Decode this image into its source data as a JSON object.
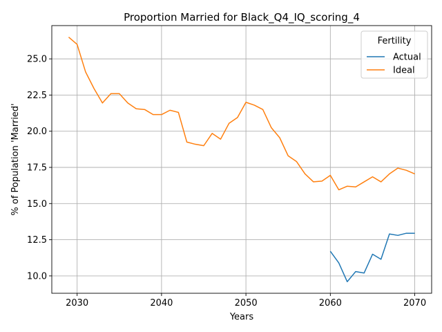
{
  "chart_data": {
    "type": "line",
    "title": "Proportion Married for Black_Q4_IQ_scoring_4",
    "xlabel": "Years",
    "ylabel": "% of Population 'Married'",
    "xlim": [
      2027,
      2072
    ],
    "ylim": [
      8.8,
      27.3
    ],
    "x_ticks": [
      2030,
      2040,
      2050,
      2060,
      2070
    ],
    "y_ticks": [
      10.0,
      12.5,
      15.0,
      17.5,
      20.0,
      22.5,
      25.0
    ],
    "x_tick_labels": [
      "2030",
      "2040",
      "2050",
      "2060",
      "2070"
    ],
    "y_tick_labels": [
      "10.0",
      "12.5",
      "15.0",
      "17.5",
      "20.0",
      "22.5",
      "25.0"
    ],
    "grid": true,
    "legend": {
      "title": "Fertility",
      "placement": "top-right"
    },
    "series": [
      {
        "name": "Actual",
        "color": "#1f77b4",
        "x": [
          2060,
          2061,
          2062,
          2063,
          2064,
          2065,
          2066,
          2067,
          2068,
          2069,
          2070
        ],
        "values": [
          11.7,
          10.9,
          9.6,
          10.3,
          10.2,
          11.5,
          11.15,
          12.9,
          12.8,
          12.95,
          12.95
        ]
      },
      {
        "name": "Ideal",
        "color": "#ff7f0e",
        "x": [
          2029,
          2030,
          2031,
          2032,
          2033,
          2034,
          2035,
          2036,
          2037,
          2038,
          2039,
          2040,
          2041,
          2042,
          2043,
          2044,
          2045,
          2046,
          2047,
          2048,
          2049,
          2050,
          2051,
          2052,
          2053,
          2054,
          2055,
          2056,
          2057,
          2058,
          2059,
          2060,
          2061,
          2062,
          2063,
          2064,
          2065,
          2066,
          2067,
          2068,
          2069,
          2070
        ],
        "values": [
          26.5,
          26.0,
          24.1,
          22.95,
          21.95,
          22.6,
          22.6,
          21.95,
          21.55,
          21.5,
          21.15,
          21.15,
          21.45,
          21.3,
          19.25,
          19.1,
          19.0,
          19.85,
          19.45,
          20.55,
          20.95,
          22.0,
          21.8,
          21.5,
          20.25,
          19.55,
          18.3,
          17.9,
          17.05,
          16.5,
          16.55,
          16.95,
          15.95,
          16.2,
          16.15,
          16.5,
          16.85,
          16.5,
          17.05,
          17.45,
          17.3,
          17.05
        ]
      }
    ]
  }
}
